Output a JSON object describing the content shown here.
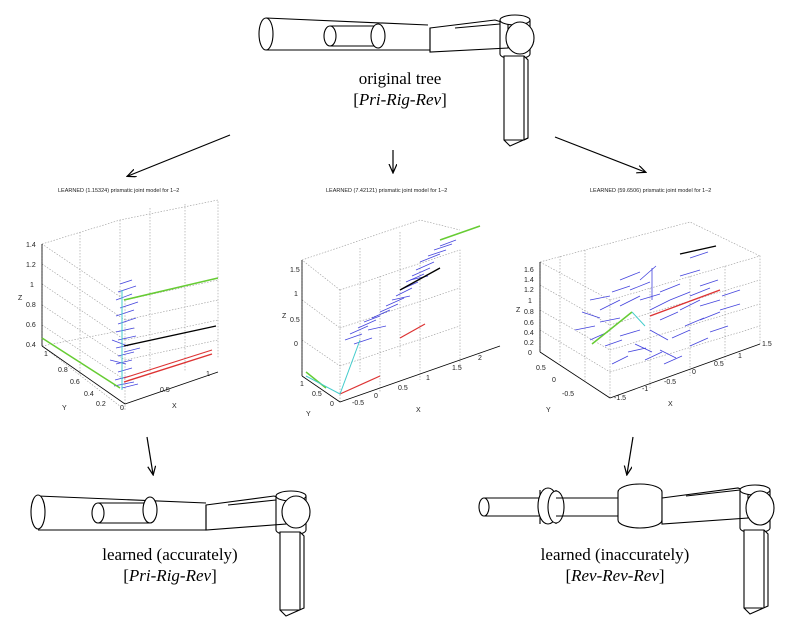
{
  "top": {
    "caption_line1": "original tree",
    "caption_line2": "Pri-Rig-Rev"
  },
  "panels": [
    {
      "title": "LEARNED (1.15324) prismatic joint model for 1–2",
      "z_ticks": [
        "1.4",
        "1.2",
        "1",
        "0.8",
        "0.6",
        "0.4"
      ],
      "x_ticks": [
        "0",
        "0.5",
        "1"
      ],
      "y_ticks": [
        "1",
        "0.8",
        "0.6",
        "0.4",
        "0.2"
      ],
      "xlabel": "X",
      "ylabel": "Y",
      "zlabel": "Z"
    },
    {
      "title": "LEARNED (7.42121) prismatic joint model for 1–2",
      "z_ticks": [
        "1.5",
        "1",
        "0.5",
        "0"
      ],
      "x_ticks": [
        "-0.5",
        "0",
        "0.5",
        "1",
        "1.5",
        "2"
      ],
      "y_ticks": [
        "1",
        "0.5",
        "0"
      ],
      "xlabel": "X",
      "ylabel": "Y",
      "zlabel": "Z"
    },
    {
      "title": "LEARNED (59.6506) prismatic joint model for 1–2",
      "z_ticks": [
        "1.6",
        "1.4",
        "1.2",
        "1",
        "0.8",
        "0.6",
        "0.4",
        "0.2",
        "0"
      ],
      "x_ticks": [
        "-1.5",
        "-1",
        "-0.5",
        "0",
        "0.5",
        "1",
        "1.5"
      ],
      "y_ticks": [
        "0.5",
        "0",
        "-0.5"
      ],
      "xlabel": "X",
      "ylabel": "Y",
      "zlabel": "Z"
    }
  ],
  "bottom_left": {
    "caption_line1": "learned (accurately)",
    "caption_line2": "Pri-Rig-Rev"
  },
  "bottom_right": {
    "caption_line1": "learned (inaccurately)",
    "caption_line2": "Rev-Rev-Rev"
  },
  "colors": {
    "arrows_blue": "#4444dd",
    "green": "#66cc33",
    "red": "#dd3333",
    "cyan": "#44cccc",
    "black": "#000000"
  }
}
